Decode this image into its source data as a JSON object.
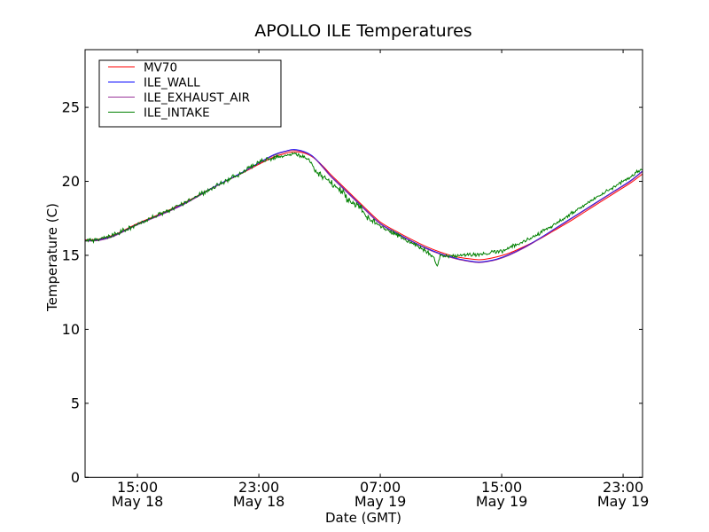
{
  "chart_data": {
    "type": "line",
    "title": "APOLLO ILE Temperatures",
    "xlabel": "Date (GMT)",
    "ylabel": "Temperature (C)",
    "x_unit": "hours since May 18 00:00 GMT",
    "xlim": [
      11.55,
      48.28
    ],
    "ylim": [
      0,
      28.9
    ],
    "grid": false,
    "legend_position": "upper left",
    "x_ticks": [
      {
        "t": 15,
        "label_top": "15:00",
        "label_bottom": "May 18"
      },
      {
        "t": 23,
        "label_top": "23:00",
        "label_bottom": "May 18"
      },
      {
        "t": 31,
        "label_top": "07:00",
        "label_bottom": "May 19"
      },
      {
        "t": 39,
        "label_top": "15:00",
        "label_bottom": "May 19"
      },
      {
        "t": 47,
        "label_top": "23:00",
        "label_bottom": "May 19"
      }
    ],
    "y_ticks": [
      0,
      5,
      10,
      15,
      20,
      25
    ],
    "series": [
      {
        "name": "MV70",
        "color": "#ff0000",
        "style": "smooth",
        "points": [
          [
            11.55,
            16.05
          ],
          [
            12.5,
            16.1
          ],
          [
            13.5,
            16.4
          ],
          [
            15,
            17.15
          ],
          [
            16.5,
            17.8
          ],
          [
            18,
            18.5
          ],
          [
            20,
            19.6
          ],
          [
            21.8,
            20.5
          ],
          [
            23,
            21.15
          ],
          [
            24,
            21.65
          ],
          [
            24.8,
            21.9
          ],
          [
            25.3,
            22.0
          ],
          [
            26,
            21.9
          ],
          [
            26.6,
            21.6
          ],
          [
            27.2,
            21.05
          ],
          [
            27.7,
            20.5
          ],
          [
            28.3,
            19.9
          ],
          [
            28.9,
            19.3
          ],
          [
            29.5,
            18.7
          ],
          [
            30,
            18.2
          ],
          [
            31,
            17.25
          ],
          [
            32,
            16.65
          ],
          [
            33,
            16.1
          ],
          [
            34,
            15.6
          ],
          [
            35,
            15.2
          ],
          [
            36,
            14.9
          ],
          [
            37,
            14.75
          ],
          [
            37.5,
            14.7
          ],
          [
            38,
            14.75
          ],
          [
            38.7,
            14.9
          ],
          [
            39.5,
            15.15
          ],
          [
            40.5,
            15.6
          ],
          [
            41.5,
            16.1
          ],
          [
            42.5,
            16.7
          ],
          [
            43.5,
            17.3
          ],
          [
            44.5,
            17.95
          ],
          [
            45.5,
            18.6
          ],
          [
            46.5,
            19.25
          ],
          [
            47.5,
            19.9
          ],
          [
            48.28,
            20.5
          ]
        ]
      },
      {
        "name": "ILE_WALL",
        "color": "#0000ff",
        "style": "smooth",
        "points": [
          [
            11.55,
            16.0
          ],
          [
            12.5,
            16.05
          ],
          [
            13.5,
            16.35
          ],
          [
            15,
            17.1
          ],
          [
            16.5,
            17.75
          ],
          [
            18,
            18.45
          ],
          [
            20,
            19.6
          ],
          [
            21.8,
            20.55
          ],
          [
            23,
            21.25
          ],
          [
            24,
            21.8
          ],
          [
            24.8,
            22.05
          ],
          [
            25.3,
            22.15
          ],
          [
            26,
            22.0
          ],
          [
            26.6,
            21.65
          ],
          [
            27.2,
            21.0
          ],
          [
            27.7,
            20.4
          ],
          [
            28.3,
            19.8
          ],
          [
            28.9,
            19.2
          ],
          [
            29.5,
            18.6
          ],
          [
            30,
            18.1
          ],
          [
            31,
            17.15
          ],
          [
            32,
            16.55
          ],
          [
            33,
            16.0
          ],
          [
            34,
            15.5
          ],
          [
            35,
            15.1
          ],
          [
            36,
            14.8
          ],
          [
            37,
            14.6
          ],
          [
            37.5,
            14.55
          ],
          [
            38,
            14.6
          ],
          [
            38.7,
            14.75
          ],
          [
            39.5,
            15.05
          ],
          [
            40.5,
            15.55
          ],
          [
            41.5,
            16.15
          ],
          [
            42.5,
            16.8
          ],
          [
            43.5,
            17.45
          ],
          [
            44.5,
            18.1
          ],
          [
            45.5,
            18.75
          ],
          [
            46.5,
            19.4
          ],
          [
            47.5,
            20.05
          ],
          [
            48.28,
            20.7
          ]
        ]
      },
      {
        "name": "ILE_EXHAUST_AIR",
        "color": "#993399",
        "style": "smooth",
        "points": [
          [
            11.55,
            15.96
          ],
          [
            12.5,
            16.01
          ],
          [
            13.5,
            16.31
          ],
          [
            15,
            17.06
          ],
          [
            16.5,
            17.71
          ],
          [
            18,
            18.41
          ],
          [
            20,
            19.56
          ],
          [
            21.8,
            20.51
          ],
          [
            23,
            21.21
          ],
          [
            24,
            21.76
          ],
          [
            24.8,
            22.01
          ],
          [
            25.3,
            22.11
          ],
          [
            26,
            21.96
          ],
          [
            26.6,
            21.61
          ],
          [
            27.2,
            20.96
          ],
          [
            27.7,
            20.36
          ],
          [
            28.3,
            19.76
          ],
          [
            28.9,
            19.16
          ],
          [
            29.5,
            18.56
          ],
          [
            30,
            18.06
          ],
          [
            31,
            17.11
          ],
          [
            32,
            16.51
          ],
          [
            33,
            15.96
          ],
          [
            34,
            15.46
          ],
          [
            35,
            15.06
          ],
          [
            36,
            14.76
          ],
          [
            37,
            14.56
          ],
          [
            37.5,
            14.51
          ],
          [
            38,
            14.56
          ],
          [
            38.7,
            14.71
          ],
          [
            39.5,
            15.01
          ],
          [
            40.5,
            15.51
          ],
          [
            41.5,
            16.11
          ],
          [
            42.5,
            16.76
          ],
          [
            43.5,
            17.41
          ],
          [
            44.5,
            18.06
          ],
          [
            45.5,
            18.71
          ],
          [
            46.5,
            19.36
          ],
          [
            47.5,
            20.01
          ],
          [
            48.28,
            20.66
          ]
        ]
      },
      {
        "name": "ILE_INTAKE",
        "color": "#008000",
        "style": "noisy",
        "points": [
          [
            11.55,
            16.0
          ],
          [
            12.5,
            16.1
          ],
          [
            13.5,
            16.4
          ],
          [
            15,
            17.1
          ],
          [
            16.5,
            17.8
          ],
          [
            18,
            18.5
          ],
          [
            20,
            19.6
          ],
          [
            21.8,
            20.55
          ],
          [
            23,
            21.3
          ],
          [
            23.8,
            21.55
          ],
          [
            24.4,
            21.7
          ],
          [
            25.3,
            21.85
          ],
          [
            26.1,
            21.6
          ],
          [
            26.4,
            21.35
          ],
          [
            26.7,
            20.7
          ],
          [
            27.2,
            20.35
          ],
          [
            27.7,
            19.95
          ],
          [
            28.3,
            19.4
          ],
          [
            28.9,
            18.75
          ],
          [
            29.3,
            18.55
          ],
          [
            29.7,
            18.2
          ],
          [
            30.1,
            17.55
          ],
          [
            30.6,
            17.25
          ],
          [
            31,
            16.95
          ],
          [
            31.7,
            16.6
          ],
          [
            32.5,
            16.15
          ],
          [
            33.3,
            15.7
          ],
          [
            34.2,
            15.15
          ],
          [
            34.55,
            14.85
          ],
          [
            34.75,
            14.2
          ],
          [
            34.95,
            15.0
          ],
          [
            35.5,
            14.95
          ],
          [
            36.5,
            15.0
          ],
          [
            37.5,
            15.05
          ],
          [
            38.3,
            15.2
          ],
          [
            39,
            15.3
          ],
          [
            39.5,
            15.5
          ],
          [
            40.5,
            15.95
          ],
          [
            41.5,
            16.5
          ],
          [
            42.5,
            17.1
          ],
          [
            43.5,
            17.75
          ],
          [
            44.5,
            18.4
          ],
          [
            45.5,
            19.05
          ],
          [
            46.5,
            19.7
          ],
          [
            47.5,
            20.35
          ],
          [
            48.28,
            20.85
          ]
        ],
        "noise_default": 0.07,
        "noise_regions": [
          {
            "from": 12.0,
            "to": 24.3,
            "amp": 0.09
          },
          {
            "from": 26.9,
            "to": 30.4,
            "amp": 0.17
          },
          {
            "from": 30.4,
            "to": 34.4,
            "amp": 0.1
          },
          {
            "from": 35.3,
            "to": 39.8,
            "amp": 0.1
          }
        ]
      }
    ]
  }
}
